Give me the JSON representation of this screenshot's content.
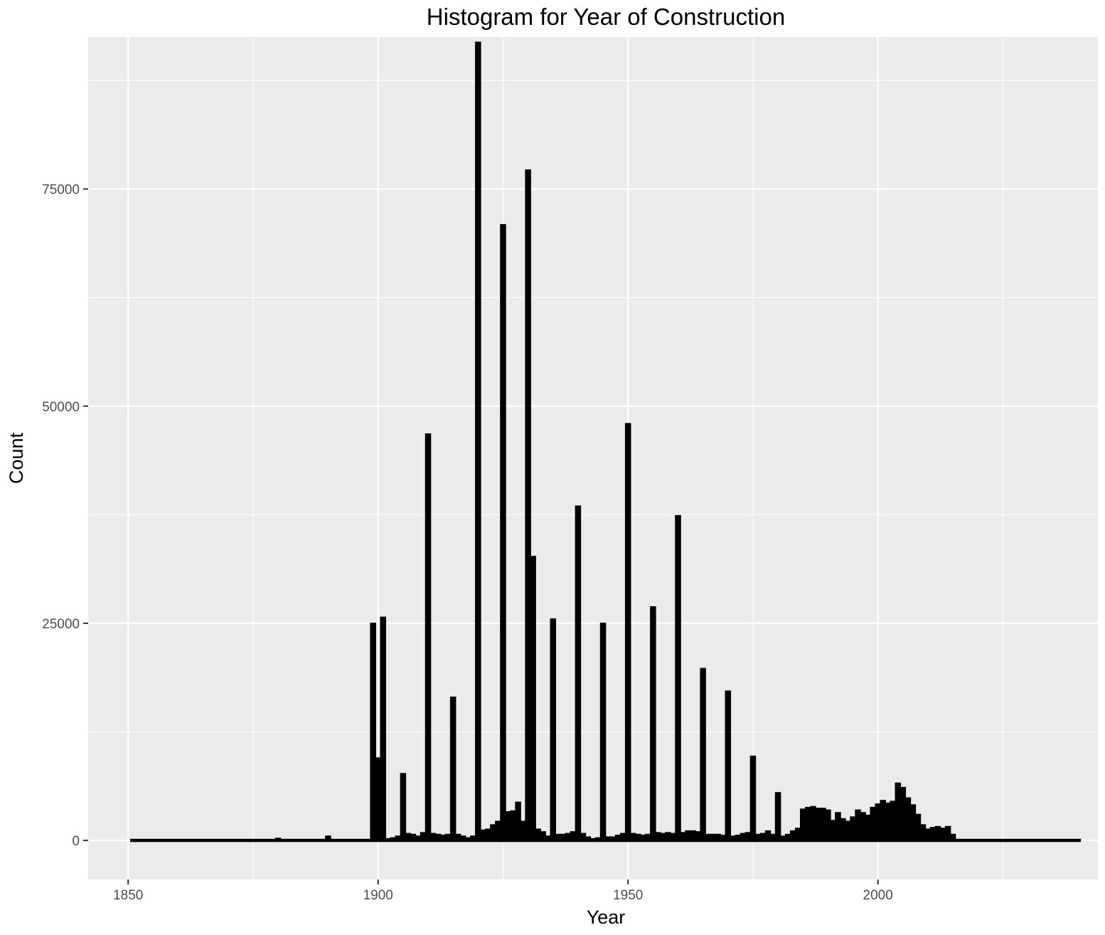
{
  "chart_data": {
    "type": "bar",
    "title": "Histogram for Year of Construction",
    "xlabel": "Year",
    "ylabel": "Count",
    "xlim": [
      1842,
      2044
    ],
    "ylim": [
      -4500,
      92500
    ],
    "x_ticks": [
      1850,
      1900,
      1950,
      2000
    ],
    "x_tick_labels": [
      "1850",
      "1900",
      "1950",
      "2000"
    ],
    "y_ticks": [
      0,
      25000,
      50000,
      75000
    ],
    "y_tick_labels": [
      "0",
      "25000",
      "50000",
      "75000"
    ],
    "grid": true,
    "legend": "none",
    "colors": {
      "panel": "#ebebeb",
      "grid": "#ffffff",
      "bar": "#000000"
    },
    "bin_width": 1,
    "x": [
      1899,
      1900,
      1901,
      1902,
      1903,
      1904,
      1905,
      1906,
      1907,
      1908,
      1909,
      1910,
      1911,
      1912,
      1913,
      1914,
      1915,
      1916,
      1917,
      1918,
      1919,
      1920,
      1921,
      1922,
      1923,
      1924,
      1925,
      1926,
      1927,
      1928,
      1929,
      1930,
      1931,
      1932,
      1933,
      1934,
      1935,
      1936,
      1937,
      1938,
      1939,
      1940,
      1941,
      1942,
      1943,
      1944,
      1945,
      1946,
      1947,
      1948,
      1949,
      1950,
      1951,
      1952,
      1953,
      1954,
      1955,
      1956,
      1957,
      1958,
      1959,
      1960,
      1961,
      1962,
      1963,
      1964,
      1965,
      1966,
      1967,
      1968,
      1969,
      1970,
      1971,
      1972,
      1973,
      1974,
      1975,
      1976,
      1977,
      1978,
      1979,
      1980,
      1981,
      1982,
      1983,
      1984,
      1985,
      1986,
      1987,
      1988,
      1989,
      1990,
      1991,
      1992,
      1993,
      1994,
      1995,
      1996,
      1997,
      1998,
      1999,
      2000,
      2001,
      2002,
      2003,
      2004,
      2005,
      2006,
      2007,
      2008,
      2009,
      2010,
      2011,
      2012,
      2013,
      2014,
      2015,
      1870,
      1880,
      1890
    ],
    "values": [
      25000,
      9500,
      25700,
      200,
      300,
      500,
      7700,
      800,
      700,
      500,
      900,
      46800,
      800,
      700,
      600,
      700,
      16500,
      700,
      500,
      300,
      500,
      91900,
      1200,
      1300,
      1800,
      2200,
      70900,
      3300,
      3400,
      4400,
      2200,
      77200,
      32700,
      1300,
      1000,
      500,
      25500,
      700,
      700,
      800,
      1000,
      38500,
      800,
      400,
      200,
      300,
      25000,
      400,
      400,
      600,
      800,
      48000,
      800,
      700,
      600,
      700,
      26900,
      900,
      800,
      900,
      800,
      37400,
      900,
      1100,
      1100,
      1000,
      19800,
      700,
      700,
      700,
      600,
      17200,
      500,
      600,
      800,
      900,
      9700,
      700,
      800,
      1100,
      700,
      5500,
      500,
      700,
      1100,
      1400,
      3600,
      3800,
      3900,
      3700,
      3700,
      3500,
      2300,
      3200,
      2500,
      2200,
      2700,
      3500,
      3200,
      2900,
      3800,
      4200,
      4600,
      4300,
      4500,
      6600,
      6100,
      4900,
      4100,
      3000,
      1800,
      1300,
      1500,
      1600,
      1400,
      1600,
      700,
      100,
      250,
      500
    ]
  }
}
